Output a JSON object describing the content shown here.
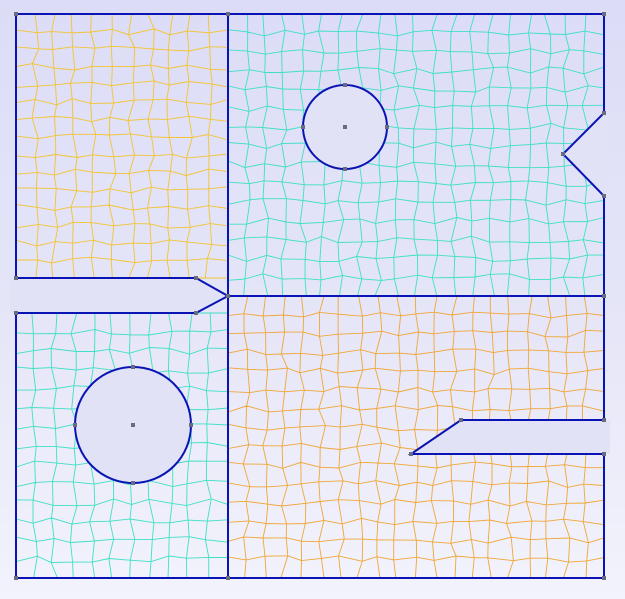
{
  "viewer": {
    "colors": {
      "background_top": "#dcdcf7",
      "background_bottom": "#f3f3fc",
      "boundary": "#0a14b4",
      "vertex": "#6a6a80",
      "mesh_yellow": "#f2c431",
      "mesh_cyan": "#3ee0c4",
      "mesh_orange": "#f0a637"
    },
    "regions": [
      {
        "name": "top-left",
        "mesh_color": "mesh_yellow",
        "element_type": "quad"
      },
      {
        "name": "top-right",
        "mesh_color": "mesh_cyan",
        "element_type": "quad",
        "features": [
          "circular-hole",
          "v-notch"
        ]
      },
      {
        "name": "bottom-left",
        "mesh_color": "mesh_cyan",
        "element_type": "quad",
        "features": [
          "circular-hole"
        ]
      },
      {
        "name": "bottom-right",
        "mesh_color": "mesh_orange",
        "element_type": "quad",
        "features": [
          "slot"
        ]
      }
    ]
  }
}
